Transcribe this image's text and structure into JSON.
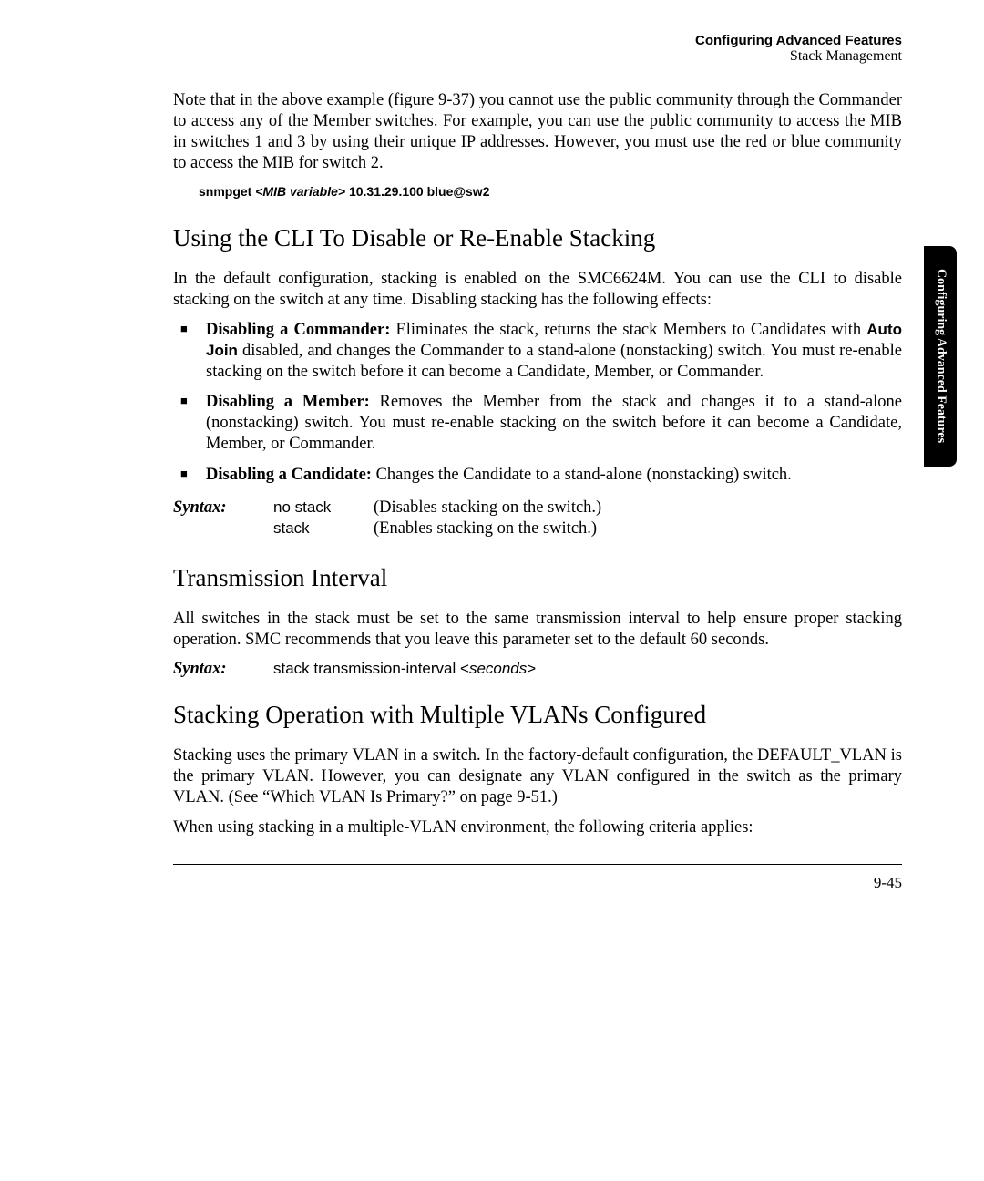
{
  "header": {
    "line1": "Configuring Advanced Features",
    "line2": "Stack Management"
  },
  "sidetab": {
    "text": "Configuring Advanced Features"
  },
  "intro_para": "Note that in the above example (figure 9-37) you cannot use the public community through the Commander to access any of the Member switches. For example, you can use the public community to access the MIB in switches 1 and 3 by using their unique IP addresses. However, you must use the red or blue community to access the MIB for switch 2.",
  "snmp": {
    "prefix": "snmpget ",
    "var": "<MIB variable>",
    "suffix": " 10.31.29.100 blue@sw2"
  },
  "section1": {
    "title": "Using the CLI To Disable or Re-Enable Stacking",
    "para": "In the default configuration, stacking is enabled on the SMC6624M. You can use the CLI to disable stacking on the switch at any time. Disabling stacking has the following effects:",
    "bullets": [
      {
        "lead": "Disabling a Commander:",
        "text_a": " Eliminates the stack, returns the stack Mem­bers to Candidates with ",
        "bold_sans": "Auto Join",
        "text_b": " disabled, and changes the Commander to a stand-alone (nonstacking) switch. You must re-enable stacking on the switch before it can become a Candidate, Member, or Commander."
      },
      {
        "lead": "Disabling a Member:",
        "text_a": " Removes the Member from the stack and changes it to a stand-alone (nonstacking) switch. You must re-enable stacking on the switch before it can become a Candidate, Member, or Commander.",
        "bold_sans": "",
        "text_b": ""
      },
      {
        "lead": "Disabling a Candidate:",
        "text_a": " Changes the Candidate to a stand-alone (non­stacking) switch.",
        "bold_sans": "",
        "text_b": ""
      }
    ],
    "syntax_label": "Syntax:",
    "rows": [
      {
        "cmd": "no stack",
        "desc": "(Disables stacking on the switch.)"
      },
      {
        "cmd": "stack",
        "desc": "(Enables stacking on the switch.)"
      }
    ]
  },
  "section2": {
    "title": "Transmission Interval",
    "para": "All switches in the stack must be set to the same transmission interval to help ensure proper stacking operation. SMC recommends that you leave this parameter set to the default 60 seconds.",
    "syntax_label": "Syntax:",
    "cmd_prefix": "stack transmission-interval <",
    "cmd_arg": "seconds",
    "cmd_suffix": ">"
  },
  "section3": {
    "title": "Stacking Operation with Multiple VLANs Configured",
    "para1": "Stacking uses the primary VLAN in a switch. In the factory-default configura­tion, the DEFAULT_VLAN is the primary VLAN. However, you can designate any VLAN configured in the switch as the primary VLAN. (See “Which VLAN Is Primary?” on page 9-51.)",
    "para2": "When using stacking in a multiple-VLAN environment, the following criteria applies:"
  },
  "page_number": "9-45"
}
